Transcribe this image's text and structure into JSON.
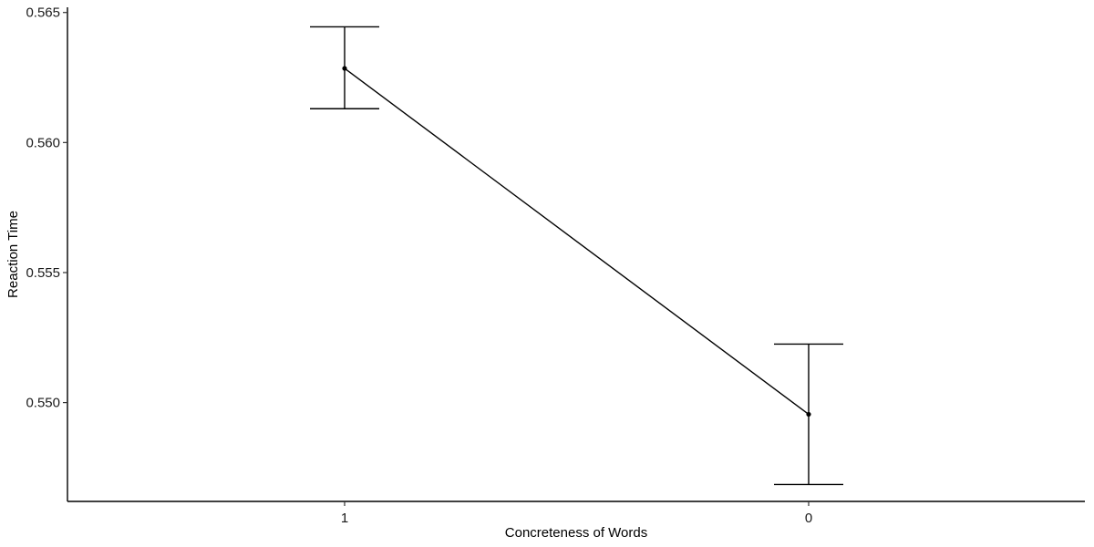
{
  "chart_data": {
    "type": "line",
    "title": "",
    "xlabel": "Concreteness of Words",
    "ylabel": "Reaction Time",
    "categories": [
      "1",
      "0"
    ],
    "series": [
      {
        "values": [
          0.56285,
          0.54955
        ],
        "error_low": [
          0.5613,
          0.54685
        ],
        "error_high": [
          0.56445,
          0.55225
        ]
      }
    ],
    "ylim": [
      0.5462,
      0.5652
    ],
    "yticks": [
      0.55,
      0.555,
      0.56,
      0.565
    ],
    "ytick_labels": [
      "0.550",
      "0.555",
      "0.560",
      "0.565"
    ],
    "grid": false,
    "legend": "none",
    "colors": {
      "line": "#000000",
      "axis": "#000000",
      "background": "#ffffff"
    }
  }
}
